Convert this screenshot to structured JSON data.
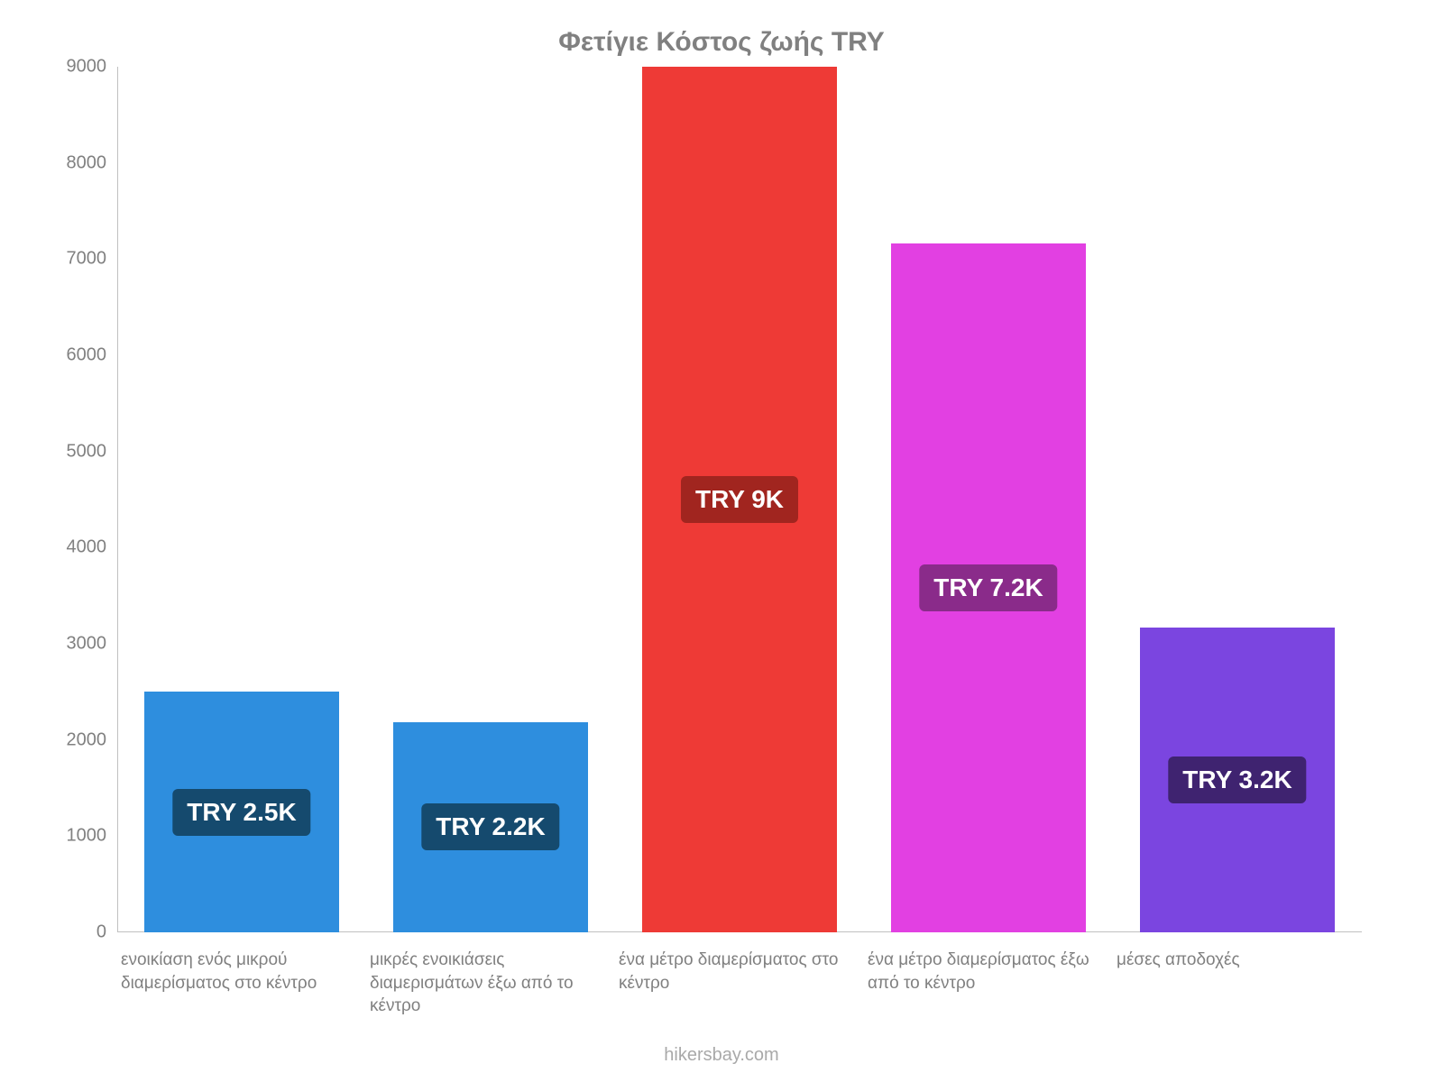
{
  "chart": {
    "type": "bar",
    "title": "Φετίγιε Κόστος ζωής TRY",
    "title_color": "#808080",
    "title_fontsize": 30,
    "background_color": "#ffffff",
    "axis_color": "#c0c0c0",
    "tick_label_color": "#808080",
    "tick_fontsize": 20,
    "x_label_fontsize": 19,
    "y": {
      "min": 0,
      "max": 9000,
      "step": 1000,
      "ticks": [
        0,
        1000,
        2000,
        3000,
        4000,
        5000,
        6000,
        7000,
        8000,
        9000
      ]
    },
    "bar_width_ratio": 0.78,
    "bars": [
      {
        "category": "ενοικίαση ενός μικρού διαμερίσματος στο κέντρο",
        "value": 2500,
        "bar_color": "#2e8ede",
        "badge_text": "TRY 2.5K",
        "badge_bg": "#154a6e",
        "badge_text_color": "#ffffff"
      },
      {
        "category": "μικρές ενοικιάσεις διαμερισμάτων έξω από το κέντρο",
        "value": 2187,
        "bar_color": "#2e8ede",
        "badge_text": "TRY 2.2K",
        "badge_bg": "#154a6e",
        "badge_text_color": "#ffffff"
      },
      {
        "category": "ένα μέτρο διαμερίσματος στο κέντρο",
        "value": 9000,
        "bar_color": "#ee3a36",
        "badge_text": "TRY 9K",
        "badge_bg": "#a1251f",
        "badge_text_color": "#ffffff"
      },
      {
        "category": "ένα μέτρο διαμερίσματος έξω από το κέντρο",
        "value": 7166,
        "bar_color": "#e240e2",
        "badge_text": "TRY 7.2K",
        "badge_bg": "#8a2b8a",
        "badge_text_color": "#ffffff"
      },
      {
        "category": "μέσες αποδοχές",
        "value": 3166,
        "bar_color": "#7b45e0",
        "badge_text": "TRY 3.2K",
        "badge_bg": "#3f2370",
        "badge_text_color": "#ffffff"
      }
    ],
    "attribution": "hikersbay.com",
    "attribution_color": "#a9a9a9",
    "attribution_fontsize": 20
  }
}
